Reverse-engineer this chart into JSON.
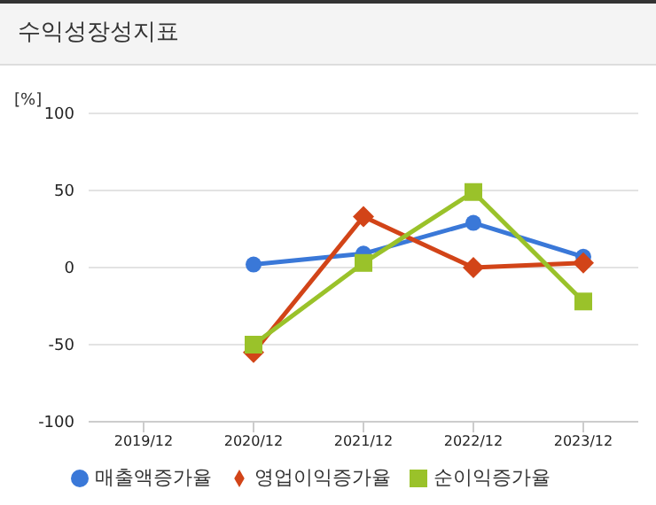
{
  "chart_data": {
    "type": "line",
    "title": "수익성장성지표",
    "ylabel": "[%]",
    "categories": [
      "2019/12",
      "2020/12",
      "2021/12",
      "2022/12",
      "2023/12"
    ],
    "series": [
      {
        "name": "매출액증가율",
        "color": "#3a78d8",
        "marker": "circle",
        "values": [
          null,
          2,
          9,
          29,
          7
        ]
      },
      {
        "name": "영업이익증가율",
        "color": "#d24418",
        "marker": "diamond",
        "values": [
          null,
          -55,
          33,
          0,
          3
        ]
      },
      {
        "name": "순이익증가율",
        "color": "#9ac22a",
        "marker": "square",
        "values": [
          null,
          -50,
          3,
          49,
          -22
        ]
      }
    ],
    "ylim": [
      -100,
      100
    ],
    "yticks": [
      -100,
      -50,
      0,
      50,
      100
    ],
    "grid": "y",
    "legend": "bottom"
  }
}
